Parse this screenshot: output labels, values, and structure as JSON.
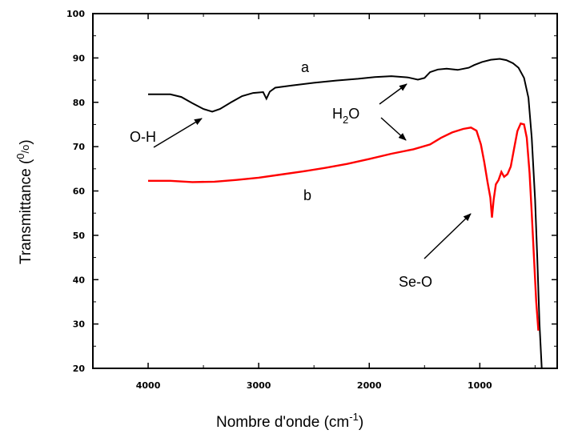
{
  "chart_data": {
    "type": "line",
    "title": "",
    "xlabel": "Nombre d'onde (cm",
    "xlabel_sup": "-1",
    "xlabel_close": ")",
    "ylabel": "Transmittance (",
    "ylabel_sup": "0",
    "ylabel_sub": "/o",
    "ylabel_close": ")",
    "xlim": [
      4500,
      300
    ],
    "ylim": [
      20,
      100
    ],
    "x_reversed": true,
    "grid": false,
    "legend": "none",
    "x_ticks": [
      4000,
      3000,
      2000,
      1000
    ],
    "x_tick_labels": [
      "4000",
      "3000",
      "2000",
      "1000"
    ],
    "y_ticks": [
      20,
      30,
      40,
      50,
      60,
      70,
      80,
      90,
      100
    ],
    "y_tick_labels": [
      "20",
      "30",
      "40",
      "50",
      "60",
      "70",
      "80",
      "90",
      "100"
    ],
    "series": [
      {
        "name": "a",
        "color": "#000000",
        "points": [
          [
            4000,
            81.8
          ],
          [
            3800,
            81.8
          ],
          [
            3700,
            81.2
          ],
          [
            3600,
            79.8
          ],
          [
            3500,
            78.5
          ],
          [
            3420,
            77.9
          ],
          [
            3350,
            78.5
          ],
          [
            3250,
            80.0
          ],
          [
            3150,
            81.4
          ],
          [
            3050,
            82.1
          ],
          [
            2960,
            82.3
          ],
          [
            2930,
            80.8
          ],
          [
            2900,
            82.4
          ],
          [
            2850,
            83.3
          ],
          [
            2700,
            83.8
          ],
          [
            2500,
            84.4
          ],
          [
            2300,
            84.9
          ],
          [
            2100,
            85.3
          ],
          [
            1950,
            85.7
          ],
          [
            1800,
            85.9
          ],
          [
            1650,
            85.6
          ],
          [
            1560,
            85.1
          ],
          [
            1500,
            85.5
          ],
          [
            1450,
            86.8
          ],
          [
            1380,
            87.4
          ],
          [
            1300,
            87.6
          ],
          [
            1200,
            87.3
          ],
          [
            1100,
            87.8
          ],
          [
            1050,
            88.4
          ],
          [
            980,
            89.1
          ],
          [
            900,
            89.6
          ],
          [
            820,
            89.8
          ],
          [
            760,
            89.5
          ],
          [
            700,
            88.8
          ],
          [
            650,
            87.8
          ],
          [
            600,
            85.5
          ],
          [
            560,
            81.0
          ],
          [
            530,
            72.0
          ],
          [
            500,
            58.0
          ],
          [
            480,
            45.0
          ],
          [
            460,
            30.0
          ],
          [
            440,
            20.0
          ]
        ]
      },
      {
        "name": "b",
        "color": "#ff0000",
        "points": [
          [
            4000,
            62.3
          ],
          [
            3800,
            62.3
          ],
          [
            3600,
            62.0
          ],
          [
            3400,
            62.1
          ],
          [
            3200,
            62.5
          ],
          [
            3000,
            63.0
          ],
          [
            2800,
            63.7
          ],
          [
            2600,
            64.4
          ],
          [
            2400,
            65.2
          ],
          [
            2200,
            66.1
          ],
          [
            2000,
            67.2
          ],
          [
            1800,
            68.4
          ],
          [
            1600,
            69.4
          ],
          [
            1450,
            70.5
          ],
          [
            1350,
            72.0
          ],
          [
            1250,
            73.2
          ],
          [
            1150,
            74.0
          ],
          [
            1080,
            74.3
          ],
          [
            1030,
            73.6
          ],
          [
            990,
            70.5
          ],
          [
            960,
            66.5
          ],
          [
            930,
            62.0
          ],
          [
            905,
            58.5
          ],
          [
            890,
            54.0
          ],
          [
            875,
            58.0
          ],
          [
            855,
            61.5
          ],
          [
            830,
            62.5
          ],
          [
            805,
            64.3
          ],
          [
            780,
            63.2
          ],
          [
            750,
            63.8
          ],
          [
            720,
            65.5
          ],
          [
            690,
            69.5
          ],
          [
            660,
            73.5
          ],
          [
            630,
            75.2
          ],
          [
            600,
            75.0
          ],
          [
            575,
            72.0
          ],
          [
            550,
            64.0
          ],
          [
            530,
            55.0
          ],
          [
            510,
            45.0
          ],
          [
            490,
            35.0
          ],
          [
            470,
            28.5
          ]
        ]
      }
    ],
    "annotations": [
      {
        "text": "a"
      },
      {
        "text": "b"
      },
      {
        "text": "O-H"
      },
      {
        "text": "H",
        "sub": "2",
        "tail": "O"
      },
      {
        "text": "Se-O"
      }
    ]
  }
}
